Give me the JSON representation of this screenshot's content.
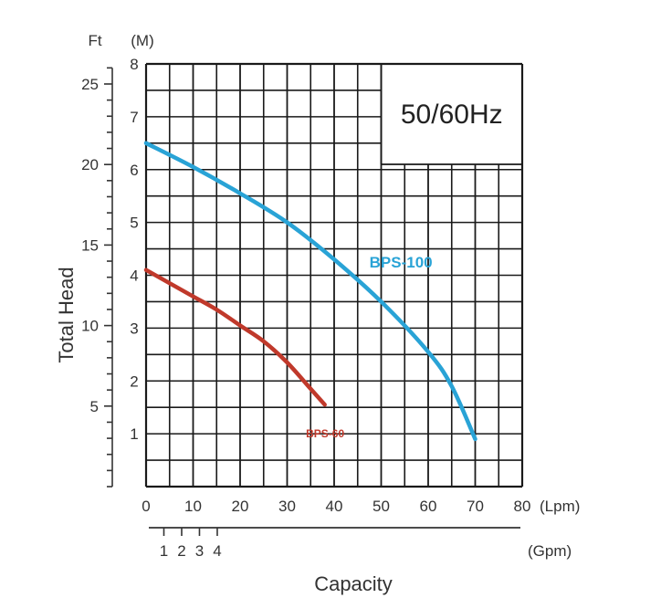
{
  "chart_data": {
    "type": "line",
    "frequency_label": "50/60Hz",
    "ylabel": "Total Head",
    "xlabel": "Capacity",
    "units": {
      "ft": "Ft",
      "m": "(M)",
      "lpm": "(Lpm)",
      "gpm": "(Gpm)"
    },
    "x_lpm": {
      "range": [
        0,
        80
      ],
      "ticks": [
        0,
        10,
        20,
        30,
        40,
        50,
        60,
        70,
        80
      ]
    },
    "x_gpm": {
      "ticks": [
        1,
        2,
        3,
        4
      ]
    },
    "y_m": {
      "range": [
        0,
        8
      ],
      "ticks": [
        1,
        2,
        3,
        4,
        5,
        6,
        7,
        8
      ]
    },
    "y_ft": {
      "labeled_ticks": [
        5,
        10,
        15,
        20,
        25
      ]
    },
    "grid": true,
    "series": [
      {
        "name": "BPS-100",
        "color": "#29a3d6",
        "points": [
          [
            0,
            6.5
          ],
          [
            10,
            6.05
          ],
          [
            20,
            5.55
          ],
          [
            30,
            5.0
          ],
          [
            40,
            4.3
          ],
          [
            50,
            3.5
          ],
          [
            60,
            2.55
          ],
          [
            65,
            1.9
          ],
          [
            70,
            0.9
          ]
        ]
      },
      {
        "name": "BPS-60",
        "color": "#c0392b",
        "points": [
          [
            0,
            4.1
          ],
          [
            5,
            3.85
          ],
          [
            10,
            3.6
          ],
          [
            15,
            3.35
          ],
          [
            20,
            3.05
          ],
          [
            25,
            2.75
          ],
          [
            30,
            2.35
          ],
          [
            35,
            1.85
          ],
          [
            38,
            1.55
          ]
        ]
      }
    ]
  }
}
